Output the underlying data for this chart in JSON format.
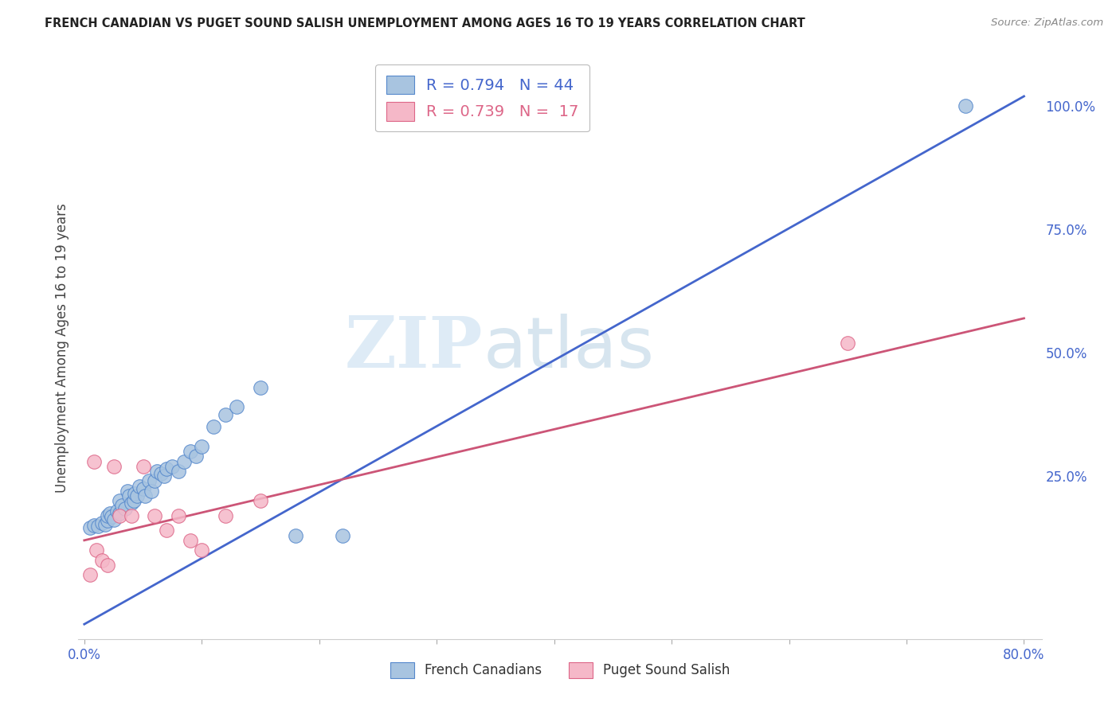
{
  "title": "FRENCH CANADIAN VS PUGET SOUND SALISH UNEMPLOYMENT AMONG AGES 16 TO 19 YEARS CORRELATION CHART",
  "source": "Source: ZipAtlas.com",
  "ylabel": "Unemployment Among Ages 16 to 19 years",
  "xlim": [
    -0.005,
    0.815
  ],
  "ylim": [
    -0.08,
    1.1
  ],
  "xticks": [
    0.0,
    0.1,
    0.2,
    0.3,
    0.4,
    0.5,
    0.6,
    0.7,
    0.8
  ],
  "xticklabels": [
    "0.0%",
    "",
    "",
    "",
    "",
    "",
    "",
    "",
    "80.0%"
  ],
  "yticks_right": [
    0.0,
    0.25,
    0.5,
    0.75,
    1.0
  ],
  "yticklabels_right": [
    "",
    "25.0%",
    "50.0%",
    "75.0%",
    "100.0%"
  ],
  "background_color": "#ffffff",
  "grid_color": "#cccccc",
  "watermark_zip": "ZIP",
  "watermark_atlas": "atlas",
  "blue_color": "#a8c4e0",
  "blue_edge_color": "#5588cc",
  "pink_color": "#f5b8c8",
  "pink_edge_color": "#dd6688",
  "blue_line_color": "#4466cc",
  "pink_line_color": "#cc5577",
  "R_blue": 0.794,
  "N_blue": 44,
  "R_pink": 0.739,
  "N_pink": 17,
  "blue_scatter_x": [
    0.005,
    0.008,
    0.012,
    0.015,
    0.018,
    0.02,
    0.02,
    0.022,
    0.023,
    0.025,
    0.028,
    0.03,
    0.03,
    0.032,
    0.035,
    0.037,
    0.038,
    0.04,
    0.042,
    0.043,
    0.045,
    0.047,
    0.05,
    0.052,
    0.055,
    0.057,
    0.06,
    0.062,
    0.065,
    0.068,
    0.07,
    0.075,
    0.08,
    0.085,
    0.09,
    0.095,
    0.1,
    0.11,
    0.12,
    0.13,
    0.15,
    0.18,
    0.22,
    0.75
  ],
  "blue_scatter_y": [
    0.145,
    0.15,
    0.148,
    0.155,
    0.152,
    0.16,
    0.17,
    0.175,
    0.168,
    0.162,
    0.18,
    0.175,
    0.2,
    0.19,
    0.185,
    0.22,
    0.21,
    0.195,
    0.2,
    0.215,
    0.21,
    0.23,
    0.225,
    0.21,
    0.24,
    0.22,
    0.24,
    0.26,
    0.255,
    0.25,
    0.265,
    0.27,
    0.26,
    0.28,
    0.3,
    0.29,
    0.31,
    0.35,
    0.375,
    0.39,
    0.43,
    0.13,
    0.13,
    1.0
  ],
  "pink_scatter_x": [
    0.005,
    0.008,
    0.01,
    0.015,
    0.02,
    0.025,
    0.03,
    0.04,
    0.05,
    0.06,
    0.07,
    0.08,
    0.09,
    0.1,
    0.12,
    0.15,
    0.65
  ],
  "pink_scatter_y": [
    0.05,
    0.28,
    0.1,
    0.08,
    0.07,
    0.27,
    0.17,
    0.17,
    0.27,
    0.17,
    0.14,
    0.17,
    0.12,
    0.1,
    0.17,
    0.2,
    0.52
  ],
  "blue_line_x0": 0.0,
  "blue_line_y0": -0.05,
  "blue_line_x1": 0.8,
  "blue_line_y1": 1.02,
  "pink_line_x0": 0.0,
  "pink_line_y0": 0.12,
  "pink_line_x1": 0.8,
  "pink_line_y1": 0.57
}
